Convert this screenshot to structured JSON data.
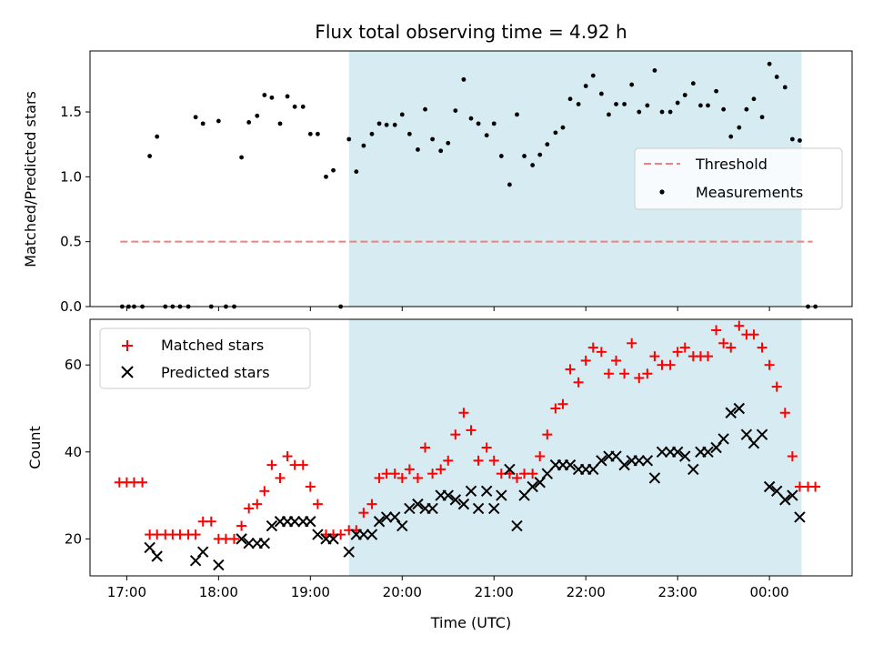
{
  "title": "Flux total observing time = 4.92 h",
  "xlabel": "Time (UTC)",
  "colors": {
    "shade": "#add8e6",
    "threshold": "#f08080",
    "measurements": "#000000",
    "matched": "#ff0000",
    "predicted": "#000000"
  },
  "chart_data": [
    {
      "type": "scatter",
      "panel": "top",
      "ylabel": "Matched/Predicted stars",
      "xlim": [
        16.6,
        24.9
      ],
      "ylim": [
        0.0,
        1.97
      ],
      "yticks": [
        0.0,
        0.5,
        1.0,
        1.5
      ],
      "ytick_labels": [
        "0.0",
        "0.5",
        "1.0",
        "1.5"
      ],
      "xticks": [
        17,
        18,
        19,
        20,
        21,
        22,
        23,
        24
      ],
      "shaded_interval": [
        19.42,
        24.35
      ],
      "legend": {
        "position": "center-right",
        "entries": [
          "Threshold",
          "Measurements"
        ]
      },
      "threshold": {
        "name": "Threshold",
        "y": 0.5,
        "x_range": [
          16.93,
          24.47
        ]
      },
      "series": [
        {
          "name": "Measurements",
          "marker": "dot",
          "points": [
            [
              16.95,
              0.0
            ],
            [
              17.02,
              0.0
            ],
            [
              17.08,
              0.0
            ],
            [
              17.17,
              0.0
            ],
            [
              17.25,
              1.16
            ],
            [
              17.33,
              1.31
            ],
            [
              17.42,
              0.0
            ],
            [
              17.5,
              0.0
            ],
            [
              17.58,
              0.0
            ],
            [
              17.67,
              0.0
            ],
            [
              17.75,
              1.46
            ],
            [
              17.83,
              1.41
            ],
            [
              17.92,
              0.0
            ],
            [
              18.0,
              1.43
            ],
            [
              18.08,
              0.0
            ],
            [
              18.17,
              0.0
            ],
            [
              18.25,
              1.15
            ],
            [
              18.33,
              1.42
            ],
            [
              18.42,
              1.47
            ],
            [
              18.5,
              1.63
            ],
            [
              18.58,
              1.61
            ],
            [
              18.67,
              1.41
            ],
            [
              18.75,
              1.62
            ],
            [
              18.83,
              1.54
            ],
            [
              18.92,
              1.54
            ],
            [
              19.0,
              1.33
            ],
            [
              19.08,
              1.33
            ],
            [
              19.17,
              1.0
            ],
            [
              19.25,
              1.05
            ],
            [
              19.33,
              0.0
            ],
            [
              19.42,
              1.29
            ],
            [
              19.5,
              1.04
            ],
            [
              19.58,
              1.24
            ],
            [
              19.67,
              1.33
            ],
            [
              19.75,
              1.41
            ],
            [
              19.83,
              1.4
            ],
            [
              19.92,
              1.4
            ],
            [
              20.0,
              1.48
            ],
            [
              20.08,
              1.33
            ],
            [
              20.17,
              1.21
            ],
            [
              20.25,
              1.52
            ],
            [
              20.33,
              1.29
            ],
            [
              20.42,
              1.2
            ],
            [
              20.5,
              1.26
            ],
            [
              20.58,
              1.51
            ],
            [
              20.67,
              1.75
            ],
            [
              20.75,
              1.45
            ],
            [
              20.83,
              1.41
            ],
            [
              20.92,
              1.32
            ],
            [
              21.0,
              1.41
            ],
            [
              21.08,
              1.16
            ],
            [
              21.17,
              0.94
            ],
            [
              21.25,
              1.48
            ],
            [
              21.33,
              1.16
            ],
            [
              21.42,
              1.09
            ],
            [
              21.5,
              1.17
            ],
            [
              21.58,
              1.25
            ],
            [
              21.67,
              1.34
            ],
            [
              21.75,
              1.38
            ],
            [
              21.83,
              1.6
            ],
            [
              21.92,
              1.56
            ],
            [
              22.0,
              1.7
            ],
            [
              22.08,
              1.78
            ],
            [
              22.17,
              1.64
            ],
            [
              22.25,
              1.48
            ],
            [
              22.33,
              1.56
            ],
            [
              22.42,
              1.56
            ],
            [
              22.5,
              1.71
            ],
            [
              22.58,
              1.5
            ],
            [
              22.67,
              1.55
            ],
            [
              22.75,
              1.82
            ],
            [
              22.83,
              1.5
            ],
            [
              22.92,
              1.5
            ],
            [
              23.0,
              1.57
            ],
            [
              23.08,
              1.63
            ],
            [
              23.17,
              1.72
            ],
            [
              23.25,
              1.55
            ],
            [
              23.33,
              1.55
            ],
            [
              23.42,
              1.66
            ],
            [
              23.5,
              1.52
            ],
            [
              23.58,
              1.31
            ],
            [
              23.67,
              1.38
            ],
            [
              23.75,
              1.52
            ],
            [
              23.83,
              1.6
            ],
            [
              23.92,
              1.46
            ],
            [
              24.0,
              1.87
            ],
            [
              24.08,
              1.77
            ],
            [
              24.17,
              1.69
            ],
            [
              24.25,
              1.29
            ],
            [
              24.33,
              1.28
            ],
            [
              24.42,
              0.0
            ],
            [
              24.5,
              0.0
            ]
          ]
        }
      ]
    },
    {
      "type": "scatter",
      "panel": "bottom",
      "ylabel": "Count",
      "xlim": [
        16.6,
        24.9
      ],
      "ylim": [
        11.5,
        70.5
      ],
      "yticks": [
        20,
        40,
        60
      ],
      "ytick_labels": [
        "20",
        "40",
        "60"
      ],
      "xticks": [
        17,
        18,
        19,
        20,
        21,
        22,
        23,
        24
      ],
      "xtick_labels": [
        "17:00",
        "18:00",
        "19:00",
        "20:00",
        "21:00",
        "22:00",
        "23:00",
        "00:00"
      ],
      "shaded_interval": [
        19.42,
        24.35
      ],
      "legend": {
        "position": "top-left",
        "entries": [
          "Matched stars",
          "Predicted stars"
        ]
      },
      "series": [
        {
          "name": "Matched stars",
          "marker": "plus",
          "points": [
            [
              16.92,
              33
            ],
            [
              17.0,
              33
            ],
            [
              17.08,
              33
            ],
            [
              17.17,
              33
            ],
            [
              17.25,
              21
            ],
            [
              17.33,
              21
            ],
            [
              17.42,
              21
            ],
            [
              17.5,
              21
            ],
            [
              17.58,
              21
            ],
            [
              17.67,
              21
            ],
            [
              17.75,
              21
            ],
            [
              17.83,
              24
            ],
            [
              17.92,
              24
            ],
            [
              18.0,
              20
            ],
            [
              18.08,
              20
            ],
            [
              18.17,
              20
            ],
            [
              18.25,
              23
            ],
            [
              18.33,
              27
            ],
            [
              18.42,
              28
            ],
            [
              18.5,
              31
            ],
            [
              18.58,
              37
            ],
            [
              18.67,
              34
            ],
            [
              18.75,
              39
            ],
            [
              18.83,
              37
            ],
            [
              18.92,
              37
            ],
            [
              19.0,
              32
            ],
            [
              19.08,
              28
            ],
            [
              19.17,
              21
            ],
            [
              19.25,
              21
            ],
            [
              19.33,
              21
            ],
            [
              19.42,
              22
            ],
            [
              19.5,
              22
            ],
            [
              19.58,
              26
            ],
            [
              19.67,
              28
            ],
            [
              19.75,
              34
            ],
            [
              19.83,
              35
            ],
            [
              19.92,
              35
            ],
            [
              20.0,
              34
            ],
            [
              20.08,
              36
            ],
            [
              20.17,
              34
            ],
            [
              20.25,
              41
            ],
            [
              20.33,
              35
            ],
            [
              20.42,
              36
            ],
            [
              20.5,
              38
            ],
            [
              20.58,
              44
            ],
            [
              20.67,
              49
            ],
            [
              20.75,
              45
            ],
            [
              20.83,
              38
            ],
            [
              20.92,
              41
            ],
            [
              21.0,
              38
            ],
            [
              21.08,
              35
            ],
            [
              21.17,
              35
            ],
            [
              21.25,
              34
            ],
            [
              21.33,
              35
            ],
            [
              21.42,
              35
            ],
            [
              21.5,
              39
            ],
            [
              21.58,
              44
            ],
            [
              21.67,
              50
            ],
            [
              21.75,
              51
            ],
            [
              21.83,
              59
            ],
            [
              21.92,
              56
            ],
            [
              22.0,
              61
            ],
            [
              22.08,
              64
            ],
            [
              22.17,
              63
            ],
            [
              22.25,
              58
            ],
            [
              22.33,
              61
            ],
            [
              22.42,
              58
            ],
            [
              22.5,
              65
            ],
            [
              22.58,
              57
            ],
            [
              22.67,
              58
            ],
            [
              22.75,
              62
            ],
            [
              22.83,
              60
            ],
            [
              22.92,
              60
            ],
            [
              23.0,
              63
            ],
            [
              23.08,
              64
            ],
            [
              23.17,
              62
            ],
            [
              23.25,
              62
            ],
            [
              23.33,
              62
            ],
            [
              23.42,
              68
            ],
            [
              23.5,
              65
            ],
            [
              23.58,
              64
            ],
            [
              23.67,
              69
            ],
            [
              23.75,
              67
            ],
            [
              23.83,
              67
            ],
            [
              23.92,
              64
            ],
            [
              24.0,
              60
            ],
            [
              24.08,
              55
            ],
            [
              24.17,
              49
            ],
            [
              24.25,
              39
            ],
            [
              24.33,
              32
            ],
            [
              24.42,
              32
            ],
            [
              24.5,
              32
            ]
          ]
        },
        {
          "name": "Predicted stars",
          "marker": "x",
          "points": [
            [
              17.25,
              18
            ],
            [
              17.33,
              16
            ],
            [
              17.75,
              15
            ],
            [
              17.83,
              17
            ],
            [
              18.0,
              14
            ],
            [
              18.25,
              20
            ],
            [
              18.33,
              19
            ],
            [
              18.42,
              19
            ],
            [
              18.5,
              19
            ],
            [
              18.58,
              23
            ],
            [
              18.67,
              24
            ],
            [
              18.75,
              24
            ],
            [
              18.83,
              24
            ],
            [
              18.92,
              24
            ],
            [
              19.0,
              24
            ],
            [
              19.08,
              21
            ],
            [
              19.17,
              20
            ],
            [
              19.25,
              20
            ],
            [
              19.42,
              17
            ],
            [
              19.5,
              21
            ],
            [
              19.58,
              21
            ],
            [
              19.67,
              21
            ],
            [
              19.75,
              24
            ],
            [
              19.83,
              25
            ],
            [
              19.92,
              25
            ],
            [
              20.0,
              23
            ],
            [
              20.08,
              27
            ],
            [
              20.17,
              28
            ],
            [
              20.25,
              27
            ],
            [
              20.33,
              27
            ],
            [
              20.42,
              30
            ],
            [
              20.5,
              30
            ],
            [
              20.58,
              29
            ],
            [
              20.67,
              28
            ],
            [
              20.75,
              31
            ],
            [
              20.83,
              27
            ],
            [
              20.92,
              31
            ],
            [
              21.0,
              27
            ],
            [
              21.08,
              30
            ],
            [
              21.17,
              36
            ],
            [
              21.25,
              23
            ],
            [
              21.33,
              30
            ],
            [
              21.42,
              32
            ],
            [
              21.5,
              33
            ],
            [
              21.58,
              35
            ],
            [
              21.67,
              37
            ],
            [
              21.75,
              37
            ],
            [
              21.83,
              37
            ],
            [
              21.92,
              36
            ],
            [
              22.0,
              36
            ],
            [
              22.08,
              36
            ],
            [
              22.17,
              38
            ],
            [
              22.25,
              39
            ],
            [
              22.33,
              39
            ],
            [
              22.42,
              37
            ],
            [
              22.5,
              38
            ],
            [
              22.58,
              38
            ],
            [
              22.67,
              38
            ],
            [
              22.75,
              34
            ],
            [
              22.83,
              40
            ],
            [
              22.92,
              40
            ],
            [
              23.0,
              40
            ],
            [
              23.08,
              39
            ],
            [
              23.17,
              36
            ],
            [
              23.25,
              40
            ],
            [
              23.33,
              40
            ],
            [
              23.42,
              41
            ],
            [
              23.5,
              43
            ],
            [
              23.58,
              49
            ],
            [
              23.67,
              50
            ],
            [
              23.75,
              44
            ],
            [
              23.83,
              42
            ],
            [
              23.92,
              44
            ],
            [
              24.0,
              32
            ],
            [
              24.08,
              31
            ],
            [
              24.17,
              29
            ],
            [
              24.25,
              30
            ],
            [
              24.33,
              25
            ]
          ]
        }
      ]
    }
  ]
}
